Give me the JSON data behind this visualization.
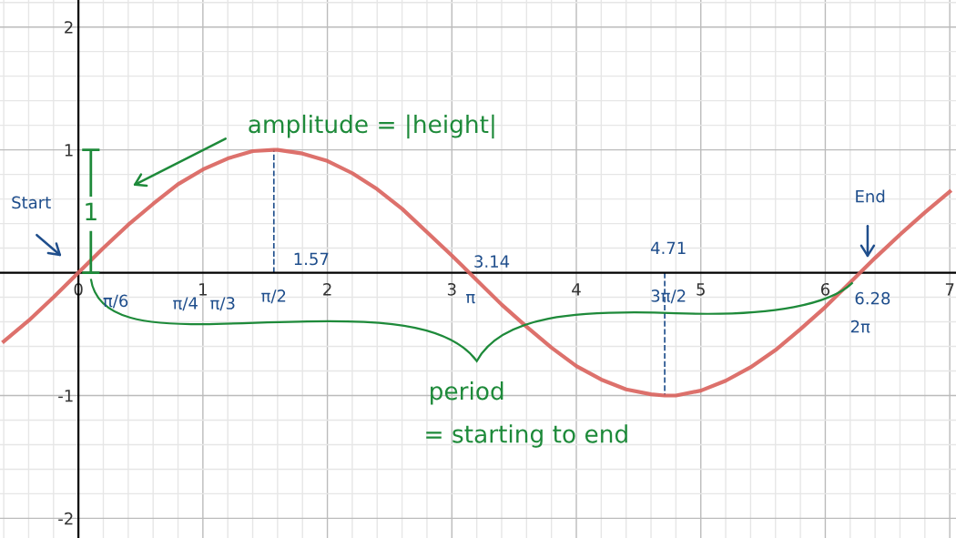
{
  "chart_data": {
    "type": "line",
    "x": [
      -0.6,
      -0.4,
      -0.2,
      0,
      0.2,
      0.4,
      0.6,
      0.8,
      1.0,
      1.2,
      1.4,
      1.57,
      1.6,
      1.8,
      2.0,
      2.2,
      2.4,
      2.6,
      2.8,
      3.0,
      3.2,
      3.4,
      3.6,
      3.8,
      4.0,
      4.2,
      4.4,
      4.6,
      4.71,
      4.8,
      5.0,
      5.2,
      5.4,
      5.6,
      5.8,
      6.0,
      6.2,
      6.4,
      6.6,
      6.8,
      7.0
    ],
    "series": [
      {
        "color": "#d9625c",
        "values": [
          -0.56,
          -0.39,
          -0.2,
          0,
          0.2,
          0.39,
          0.56,
          0.72,
          0.84,
          0.93,
          0.99,
          1.0,
          1.0,
          0.97,
          0.91,
          0.81,
          0.68,
          0.52,
          0.33,
          0.14,
          -0.06,
          -0.26,
          -0.44,
          -0.61,
          -0.76,
          -0.87,
          -0.95,
          -0.99,
          -1.0,
          -1.0,
          -0.96,
          -0.88,
          -0.77,
          -0.63,
          -0.46,
          -0.28,
          -0.08,
          0.12,
          0.31,
          0.49,
          0.66
        ]
      }
    ],
    "xlim": [
      -0.63,
      7.05
    ],
    "ylim": [
      -2.16,
      2.22
    ],
    "xticks": [
      0,
      1,
      2,
      3,
      4,
      5,
      6,
      7
    ],
    "yticks": [
      -2,
      -1,
      1,
      2
    ],
    "grid": true,
    "marker": "none",
    "line_style": "solid",
    "legend": false,
    "ref_lines": [
      {
        "axis": "x",
        "value": 1.57,
        "color": "#1f4e8c",
        "line_style": "dashed"
      },
      {
        "axis": "x",
        "value": 4.71,
        "color": "#1f4e8c",
        "line_style": "dashed"
      }
    ],
    "annotations": [
      "amplitude = |height|",
      "1",
      "period",
      "= starting to end",
      "Start",
      "End",
      "π/6",
      "π/4",
      "π/3",
      "π/2",
      "1.57",
      "3.14",
      "π",
      "4.71",
      "3π/2",
      "6.28",
      "2π"
    ]
  }
}
